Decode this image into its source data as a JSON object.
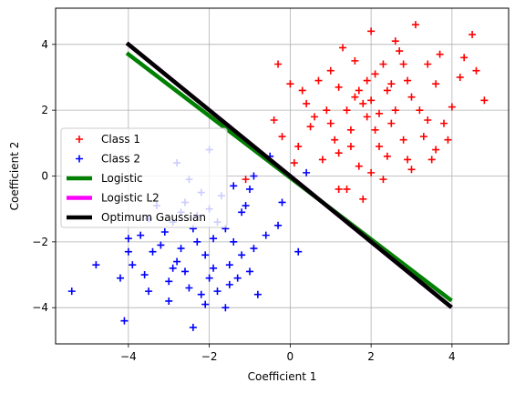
{
  "chart_data": {
    "type": "scatter",
    "title": "",
    "xlabel": "Coefficient 1",
    "ylabel": "Coefficient 2",
    "xlim": [
      -5.8,
      5.4
    ],
    "ylim": [
      -5.1,
      5.1
    ],
    "xticks": [
      -4,
      -2,
      0,
      2,
      4
    ],
    "yticks": [
      -4,
      -2,
      0,
      2,
      4
    ],
    "grid": true,
    "legend_location": "center-left",
    "series": [
      {
        "name": "Class 1",
        "kind": "points",
        "marker": "+",
        "color": "#ff0000",
        "points": [
          [
            1.2,
            2.7
          ],
          [
            2.1,
            3.1
          ],
          [
            1.8,
            2.2
          ],
          [
            2.5,
            1.6
          ],
          [
            3.0,
            2.4
          ],
          [
            2.8,
            3.4
          ],
          [
            1.5,
            1.4
          ],
          [
            2.2,
            0.9
          ],
          [
            3.3,
            1.2
          ],
          [
            0.9,
            2.0
          ],
          [
            1.6,
            3.5
          ],
          [
            2.4,
            2.6
          ],
          [
            3.6,
            2.8
          ],
          [
            1.1,
            1.1
          ],
          [
            2.9,
            0.5
          ],
          [
            0.4,
            2.2
          ],
          [
            4.2,
            3.0
          ],
          [
            2.0,
            4.4
          ],
          [
            3.1,
            4.6
          ],
          [
            1.3,
            3.9
          ],
          [
            0.5,
            1.5
          ],
          [
            1.9,
            1.8
          ],
          [
            2.6,
            2.0
          ],
          [
            3.8,
            1.6
          ],
          [
            1.7,
            0.3
          ],
          [
            2.3,
            -0.1
          ],
          [
            1.4,
            -0.4
          ],
          [
            3.5,
            0.5
          ],
          [
            0.2,
            0.9
          ],
          [
            -0.4,
            1.7
          ],
          [
            -0.3,
            3.4
          ],
          [
            0.0,
            2.8
          ],
          [
            4.5,
            4.3
          ],
          [
            4.6,
            3.2
          ],
          [
            4.0,
            2.1
          ],
          [
            0.8,
            0.5
          ],
          [
            1.0,
            3.2
          ],
          [
            2.7,
            3.8
          ],
          [
            3.4,
            3.4
          ],
          [
            1.9,
            2.9
          ],
          [
            2.1,
            1.4
          ],
          [
            1.6,
            2.4
          ],
          [
            2.8,
            1.1
          ],
          [
            3.2,
            2.0
          ],
          [
            0.6,
            1.8
          ],
          [
            1.2,
            0.7
          ],
          [
            2.4,
            0.6
          ],
          [
            3.0,
            0.2
          ],
          [
            1.8,
            -0.7
          ],
          [
            1.2,
            -0.4
          ],
          [
            -1.1,
            -0.1
          ],
          [
            0.1,
            0.4
          ],
          [
            -0.2,
            1.2
          ],
          [
            0.3,
            2.6
          ],
          [
            2.6,
            4.1
          ],
          [
            3.7,
            3.7
          ],
          [
            1.4,
            2.0
          ],
          [
            2.0,
            2.3
          ],
          [
            2.2,
            1.9
          ],
          [
            2.5,
            2.8
          ],
          [
            3.9,
            1.1
          ],
          [
            4.8,
            2.3
          ],
          [
            3.4,
            1.7
          ],
          [
            0.7,
            2.9
          ],
          [
            1.0,
            1.6
          ],
          [
            1.7,
            2.6
          ],
          [
            2.9,
            2.9
          ],
          [
            2.3,
            3.4
          ],
          [
            1.5,
            0.9
          ],
          [
            3.6,
            0.8
          ],
          [
            4.3,
            3.6
          ],
          [
            2.0,
            0.1
          ]
        ]
      },
      {
        "name": "Class 2",
        "kind": "points",
        "marker": "+",
        "color": "#0000ff",
        "points": [
          [
            -2.3,
            -2.0
          ],
          [
            -1.8,
            -1.4
          ],
          [
            -2.8,
            -2.6
          ],
          [
            -1.5,
            -2.7
          ],
          [
            -2.0,
            -3.1
          ],
          [
            -3.1,
            -1.7
          ],
          [
            -1.2,
            -1.1
          ],
          [
            -2.6,
            -0.8
          ],
          [
            -3.4,
            -2.3
          ],
          [
            -1.7,
            -0.6
          ],
          [
            -2.2,
            -3.6
          ],
          [
            -0.9,
            -2.2
          ],
          [
            -3.6,
            -3.0
          ],
          [
            -1.0,
            -0.4
          ],
          [
            -2.5,
            -0.1
          ],
          [
            -2.0,
            0.8
          ],
          [
            -1.6,
            -4.0
          ],
          [
            -3.0,
            -3.8
          ],
          [
            -4.0,
            -2.3
          ],
          [
            -4.1,
            -4.4
          ],
          [
            -4.8,
            -2.7
          ],
          [
            -5.4,
            -3.5
          ],
          [
            -2.4,
            -4.6
          ],
          [
            -0.3,
            -1.5
          ],
          [
            -0.9,
            0.0
          ],
          [
            -1.3,
            -3.1
          ],
          [
            -2.9,
            -1.4
          ],
          [
            -3.3,
            -0.9
          ],
          [
            -2.1,
            -2.4
          ],
          [
            -1.9,
            -1.9
          ],
          [
            -2.7,
            -2.2
          ],
          [
            -1.4,
            -2.0
          ],
          [
            -2.3,
            -1.2
          ],
          [
            -3.7,
            -1.8
          ],
          [
            -4.2,
            -3.1
          ],
          [
            -3.5,
            -3.5
          ],
          [
            0.2,
            -2.3
          ],
          [
            0.4,
            0.1
          ],
          [
            -0.5,
            0.6
          ],
          [
            -1.1,
            -0.9
          ],
          [
            -2.8,
            0.4
          ],
          [
            -2.2,
            -0.5
          ],
          [
            -1.5,
            -3.3
          ],
          [
            -0.8,
            -3.6
          ],
          [
            -2.6,
            -2.9
          ],
          [
            -3.9,
            -2.7
          ],
          [
            -3.2,
            -2.1
          ],
          [
            -1.9,
            -2.8
          ],
          [
            -2.4,
            -1.6
          ],
          [
            -1.6,
            -1.6
          ],
          [
            -2.0,
            -1.0
          ],
          [
            -3.0,
            -3.2
          ],
          [
            -2.5,
            -3.4
          ],
          [
            -1.2,
            -2.4
          ],
          [
            -0.6,
            -1.8
          ],
          [
            -0.2,
            -0.8
          ],
          [
            -1.4,
            -0.3
          ],
          [
            -2.7,
            -1.1
          ],
          [
            -3.5,
            -1.3
          ],
          [
            -4.0,
            -1.9
          ],
          [
            -2.9,
            -2.8
          ],
          [
            -1.8,
            -3.5
          ],
          [
            -2.1,
            -3.9
          ],
          [
            -1.0,
            -2.9
          ]
        ]
      },
      {
        "name": "Logistic",
        "kind": "line",
        "color": "#008000",
        "width": 4.5,
        "points": [
          [
            -4.0,
            3.7
          ],
          [
            3.95,
            -3.75
          ]
        ]
      },
      {
        "name": "Logistic L2",
        "kind": "line",
        "color": "#ff00ff",
        "width": 4.5,
        "points": [
          [
            -4.0,
            4.0
          ],
          [
            3.95,
            -3.95
          ]
        ]
      },
      {
        "name": "Optimum Gaussian",
        "kind": "line",
        "color": "#000000",
        "width": 4.5,
        "points": [
          [
            -4.0,
            4.0
          ],
          [
            3.95,
            -3.95
          ]
        ]
      }
    ]
  }
}
